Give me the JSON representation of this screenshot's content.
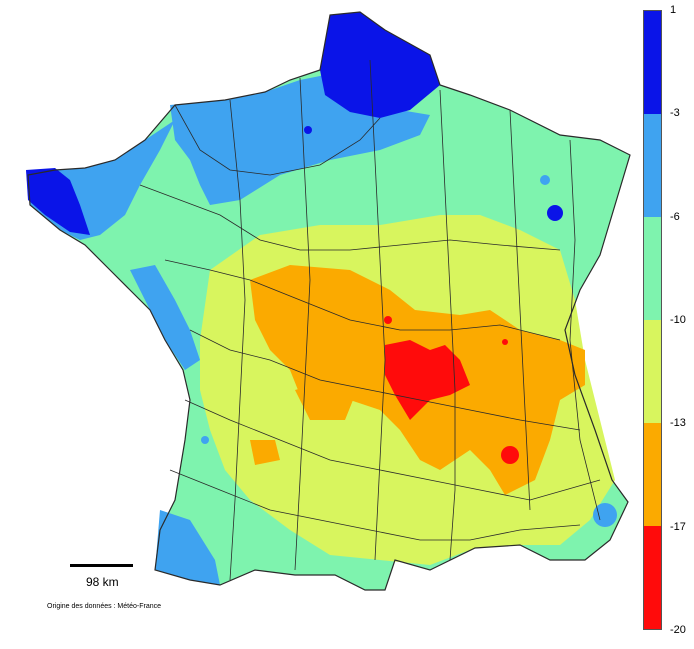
{
  "map": {
    "legend": {
      "ticks": [
        "1",
        "-3",
        "-6",
        "-10",
        "-13",
        "-17",
        "-20"
      ],
      "colors": [
        "#0a14e8",
        "#3fa3f0",
        "#7ef3ae",
        "#d8f55e",
        "#fbaa00",
        "#ff0b0b"
      ]
    },
    "scale_bar_label": "98 km",
    "source": "Origine des données : Météo-France"
  }
}
